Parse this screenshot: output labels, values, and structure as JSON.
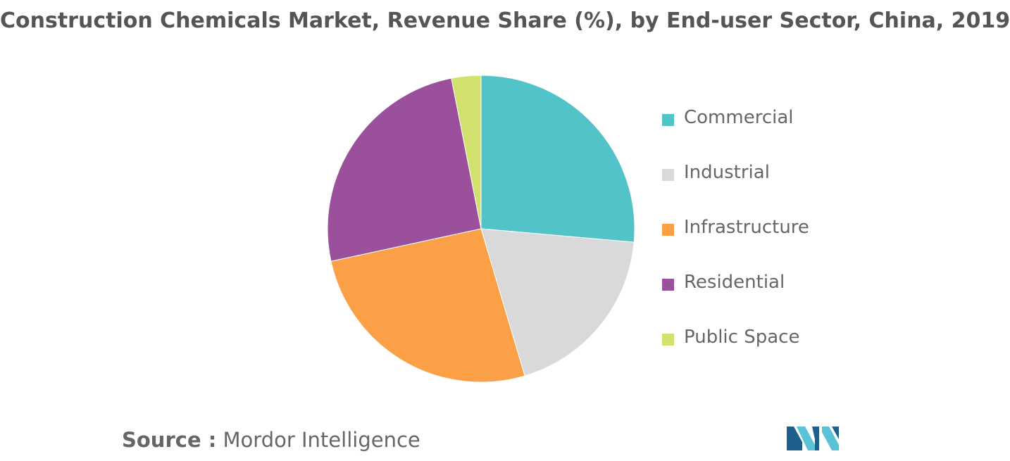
{
  "chart_data": {
    "type": "pie",
    "title": "Construction Chemicals Market, Revenue Share (%), by End-user Sector, China, 2019",
    "start_angle_deg": 0,
    "direction": "clockwise",
    "legend_position": "right",
    "slices": [
      {
        "label": "Commercial",
        "value": 26.4,
        "color": "#52c4c9"
      },
      {
        "label": "Industrial",
        "value": 19.0,
        "color": "#d9d9d9"
      },
      {
        "label": "Infrastructure",
        "value": 26.2,
        "color": "#fba047"
      },
      {
        "label": "Residential",
        "value": 25.3,
        "color": "#9b509c"
      },
      {
        "label": "Public Space",
        "value": 3.1,
        "color": "#d2e06d"
      }
    ]
  },
  "source": {
    "prefix": "Source :",
    "name": "Mordor Intelligence"
  },
  "logo": {
    "icon": "mordor-intelligence-logo-icon",
    "colors": [
      "#1f5f8b",
      "#5ac2d6"
    ]
  }
}
